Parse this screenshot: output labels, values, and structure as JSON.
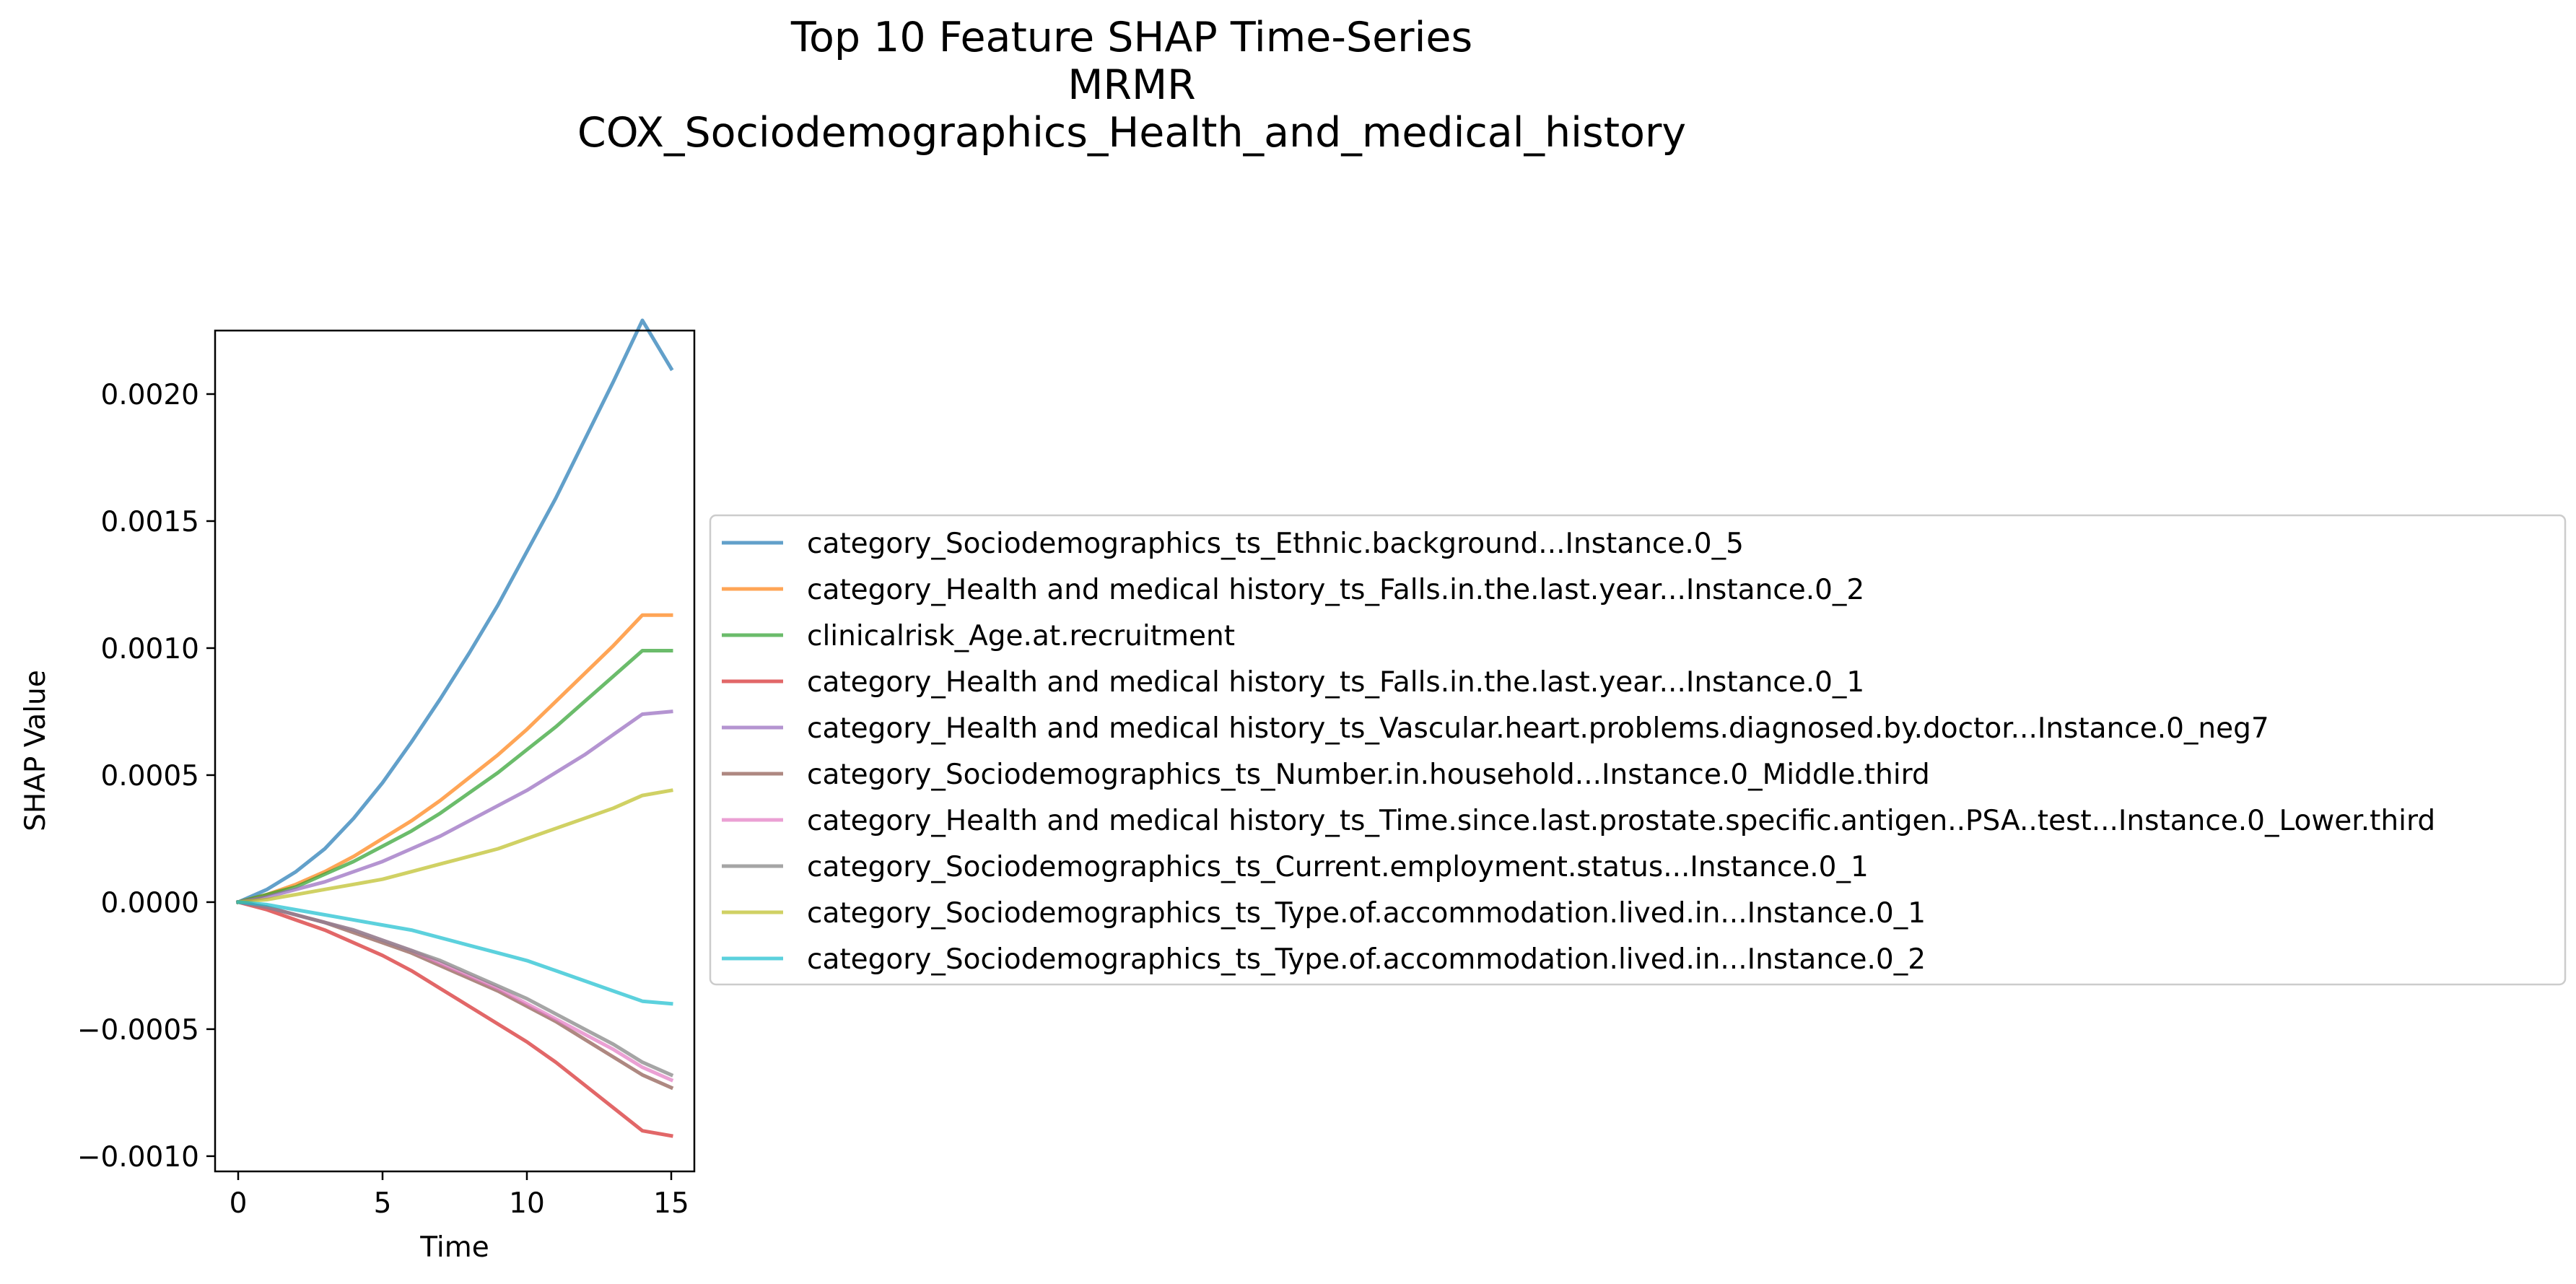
{
  "chart_data": {
    "type": "line",
    "title_lines": [
      "Top 10 Feature SHAP Time-Series",
      "MRMR",
      "COX_Sociodemographics_Health_and_medical_history"
    ],
    "xlabel": "Time",
    "ylabel": "SHAP Value",
    "xlim": [
      -0.8,
      15.8
    ],
    "ylim": [
      -0.00106,
      0.00225
    ],
    "x_ticks": [
      0,
      5,
      10,
      15
    ],
    "x_tick_labels": [
      "0",
      "5",
      "10",
      "15"
    ],
    "y_ticks": [
      -0.001,
      -0.0005,
      0.0,
      0.0005,
      0.001,
      0.0015,
      0.002
    ],
    "y_tick_labels": [
      "−0.0010",
      "−0.0005",
      "0.0000",
      "0.0005",
      "0.0010",
      "0.0015",
      "0.0020"
    ],
    "legend_position": "center-right outside",
    "grid": false,
    "x": [
      0,
      1,
      2,
      3,
      4,
      5,
      6,
      7,
      8,
      9,
      10,
      11,
      12,
      13,
      14,
      15
    ],
    "series": [
      {
        "name": "category_Sociodemographics_ts_Ethnic.background...Instance.0_5",
        "color": "#1f77b4",
        "values": [
          0,
          5e-05,
          0.00012,
          0.00021,
          0.00033,
          0.00047,
          0.00063,
          0.0008,
          0.00098,
          0.00117,
          0.00138,
          0.00159,
          0.00182,
          0.00205,
          0.00229,
          0.0021
        ]
      },
      {
        "name": "category_Health and medical history_ts_Falls.in.the.last.year...Instance.0_2",
        "color": "#ff7f0e",
        "values": [
          0,
          3e-05,
          7e-05,
          0.00012,
          0.00018,
          0.00025,
          0.00032,
          0.0004,
          0.00049,
          0.00058,
          0.00068,
          0.00079,
          0.0009,
          0.00101,
          0.00113,
          0.00113
        ]
      },
      {
        "name": "clinicalrisk_Age.at.recruitment",
        "color": "#2ca02c",
        "values": [
          0,
          3e-05,
          6e-05,
          0.00011,
          0.00016,
          0.00022,
          0.00028,
          0.00035,
          0.00043,
          0.00051,
          0.0006,
          0.00069,
          0.00079,
          0.00089,
          0.00099,
          0.00099
        ]
      },
      {
        "name": "category_Health and medical history_ts_Falls.in.the.last.year...Instance.0_1",
        "color": "#d62728",
        "values": [
          0,
          -3e-05,
          -7e-05,
          -0.00011,
          -0.00016,
          -0.00021,
          -0.00027,
          -0.00034,
          -0.00041,
          -0.00048,
          -0.00055,
          -0.00063,
          -0.00072,
          -0.00081,
          -0.0009,
          -0.00092
        ]
      },
      {
        "name": "category_Health and medical history_ts_Vascular.heart.problems.diagnosed.by.doctor...Instance.0_neg7",
        "color": "#9467bd",
        "values": [
          0,
          2e-05,
          5e-05,
          8e-05,
          0.00012,
          0.00016,
          0.00021,
          0.00026,
          0.00032,
          0.00038,
          0.00044,
          0.00051,
          0.00058,
          0.00066,
          0.00074,
          0.00075
        ]
      },
      {
        "name": "category_Sociodemographics_ts_Number.in.household...Instance.0_Middle.third",
        "color": "#8c564b",
        "values": [
          0,
          -2e-05,
          -5e-05,
          -8e-05,
          -0.00012,
          -0.00016,
          -0.0002,
          -0.00025,
          -0.0003,
          -0.00035,
          -0.00041,
          -0.00047,
          -0.00054,
          -0.00061,
          -0.00068,
          -0.00073
        ]
      },
      {
        "name": "category_Health and medical history_ts_Time.since.last.prostate.specific.antigen..PSA..test...Instance.0_Lower.third",
        "color": "#e377c2",
        "values": [
          0,
          -2e-05,
          -5e-05,
          -8e-05,
          -0.00011,
          -0.00015,
          -0.00019,
          -0.00024,
          -0.00029,
          -0.00034,
          -0.0004,
          -0.00046,
          -0.00052,
          -0.00058,
          -0.00065,
          -0.0007
        ]
      },
      {
        "name": "category_Sociodemographics_ts_Current.employment.status...Instance.0_1",
        "color": "#7f7f7f",
        "values": [
          0,
          -2e-05,
          -5e-05,
          -8e-05,
          -0.00011,
          -0.00015,
          -0.00019,
          -0.00023,
          -0.00028,
          -0.00033,
          -0.00038,
          -0.00044,
          -0.0005,
          -0.00056,
          -0.00063,
          -0.00068
        ]
      },
      {
        "name": "category_Sociodemographics_ts_Type.of.accommodation.lived.in...Instance.0_1",
        "color": "#bcbd22",
        "values": [
          0,
          1e-05,
          3e-05,
          5e-05,
          7e-05,
          9e-05,
          0.00012,
          0.00015,
          0.00018,
          0.00021,
          0.00025,
          0.00029,
          0.00033,
          0.00037,
          0.00042,
          0.00044
        ]
      },
      {
        "name": "category_Sociodemographics_ts_Type.of.accommodation.lived.in...Instance.0_2",
        "color": "#17becf",
        "values": [
          0,
          -1e-05,
          -3e-05,
          -5e-05,
          -7e-05,
          -9e-05,
          -0.00011,
          -0.00014,
          -0.00017,
          -0.0002,
          -0.00023,
          -0.00027,
          -0.00031,
          -0.00035,
          -0.00039,
          -0.0004
        ]
      }
    ]
  }
}
